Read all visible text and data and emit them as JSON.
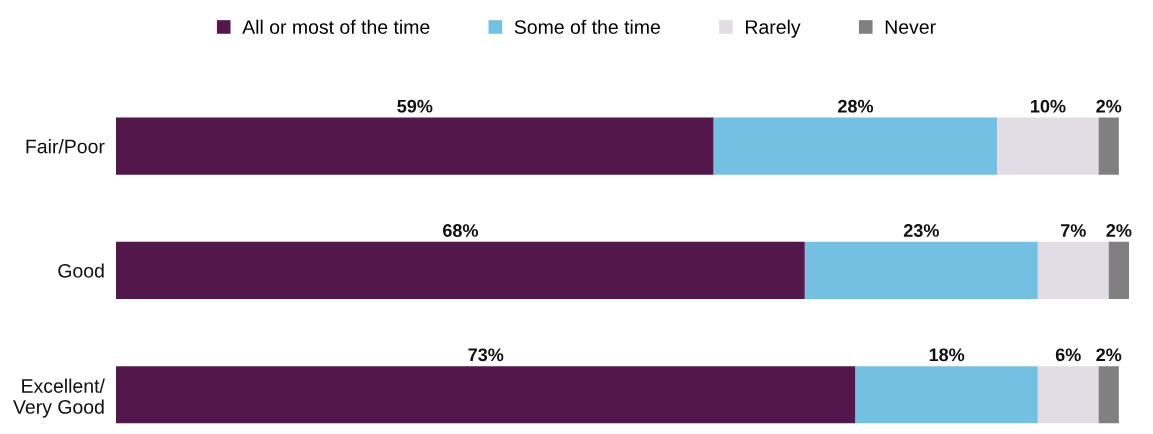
{
  "chart_data": {
    "type": "bar",
    "orientation": "horizontal",
    "stacked": true,
    "categories": [
      "Fair/Poor",
      "Good",
      "Excellent/\nVery Good"
    ],
    "series": [
      {
        "name": "All or most of the time",
        "color": "#54174b",
        "values": [
          59,
          68,
          73
        ],
        "value_labels": [
          "59%",
          "68%",
          "73%"
        ]
      },
      {
        "name": "Some of the time",
        "color": "#73c0e2",
        "values": [
          28,
          23,
          18
        ],
        "value_labels": [
          "28%",
          "23%",
          "18%"
        ]
      },
      {
        "name": "Rarely",
        "color": "#e2dce4",
        "values": [
          10,
          7,
          6
        ],
        "value_labels": [
          "10%",
          "7%",
          "6%"
        ]
      },
      {
        "name": "Never",
        "color": "#808080",
        "values": [
          2,
          2,
          2
        ],
        "value_labels": [
          "2%",
          "2%",
          "2%"
        ]
      }
    ],
    "legend": "top",
    "tick_labels": "y"
  }
}
